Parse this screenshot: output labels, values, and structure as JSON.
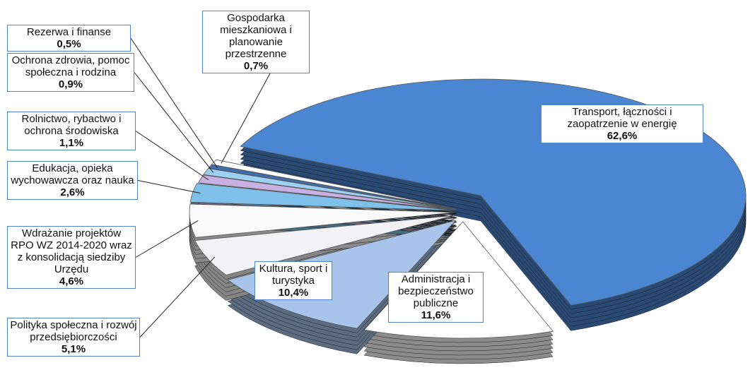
{
  "chart_data": {
    "type": "pie3d",
    "categories": [
      "Transport, łączności i zaopatrzenie w energię",
      "Administracja i bezpieczeństwo publiczne",
      "Kultura, sport i turystyka",
      "Polityka społeczna i rozwój przedsiębiorczości",
      "Wdrażanie projektów RPO WZ 2014-2020 wraz z konsolidacją siedziby Urzędu",
      "Edukacja, opieka wychowawcza oraz nauka",
      "Rolnictwo, rybactwo i ochrona środowiska",
      "Ochrona zdrowia, pomoc społeczna i rodzina",
      "Rezerwa i finanse",
      "Gospodarka mieszkaniowa i planowanie przestrzenne"
    ],
    "values": [
      62.6,
      11.6,
      10.4,
      5.1,
      4.6,
      2.6,
      1.1,
      0.9,
      0.5,
      0.7
    ],
    "value_labels": [
      "62,6%",
      "11,6%",
      "10,4%",
      "5,1%",
      "4,6%",
      "2,6%",
      "1,1%",
      "0,9%",
      "0,5%",
      "0,7%"
    ],
    "colors": [
      "#4a86d2",
      "#ffffff",
      "#a8c4ea",
      "#f2f2f4",
      "#fafafa",
      "#7fc0ea",
      "#c8b0e2",
      "#9ed0f4",
      "#3f6fb0",
      "#ffffff"
    ]
  }
}
